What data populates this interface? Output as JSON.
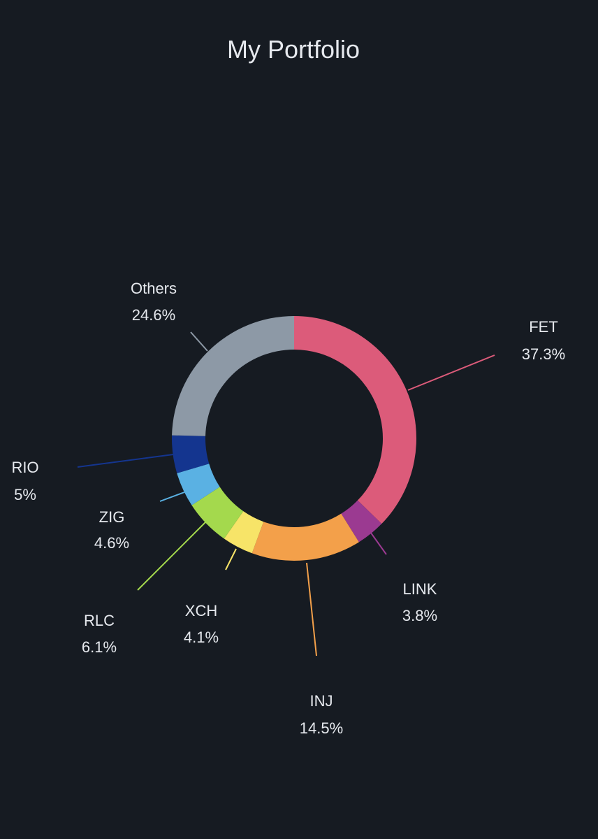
{
  "chart_data": {
    "type": "pie",
    "title": "My Portfolio",
    "labels": [
      "FET",
      "LINK",
      "INJ",
      "XCH",
      "RLC",
      "ZIG",
      "RIO",
      "Others"
    ],
    "values": [
      37.3,
      3.8,
      14.5,
      4.1,
      6.1,
      4.6,
      5,
      24.6
    ],
    "value_labels": [
      "37.3%",
      "3.8%",
      "14.5%",
      "4.1%",
      "6.1%",
      "4.6%",
      "5%",
      "24.6%"
    ],
    "colors": [
      "#dc5b7a",
      "#9b3a91",
      "#f3a04a",
      "#f7e468",
      "#a4d94d",
      "#5ab1e3",
      "#14358f",
      "#8d99a6"
    ],
    "style": "donut",
    "legend": "none"
  }
}
